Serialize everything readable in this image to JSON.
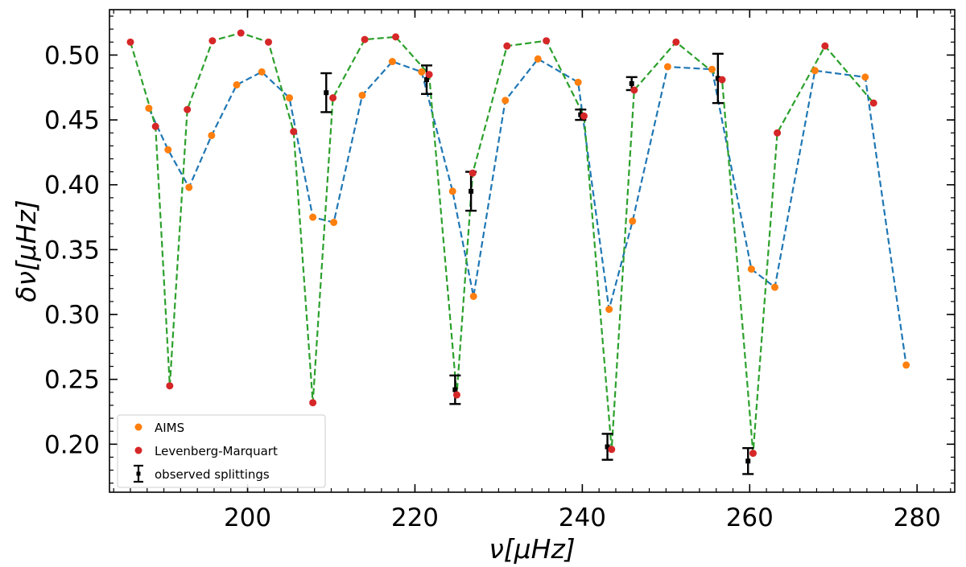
{
  "chart_data": {
    "type": "scatter",
    "title": "",
    "xlabel": "ν[μHz]",
    "ylabel": "δν[μHz]",
    "xlim": [
      183.5,
      284.5
    ],
    "ylim": [
      0.163,
      0.535
    ],
    "x_ticks": [
      200,
      220,
      240,
      260,
      280
    ],
    "x_tick_labels": [
      "200",
      "220",
      "240",
      "260",
      "280"
    ],
    "y_ticks": [
      0.2,
      0.25,
      0.3,
      0.35,
      0.4,
      0.45,
      0.5
    ],
    "y_tick_labels": [
      "0.20",
      "0.25",
      "0.30",
      "0.35",
      "0.40",
      "0.45",
      "0.50"
    ],
    "x_minor_step": 2,
    "y_minor_step": 0.01,
    "grid": false,
    "legend_position": "bottom-left",
    "colors": {
      "aims": "#ff7f0e",
      "lm": "#d62728",
      "aims_line": "#1f77b4",
      "lm_line": "#2ca02c",
      "observed": "#000000"
    },
    "series": [
      {
        "name": "AIMS",
        "kind": "points",
        "x": [
          188.2,
          190.5,
          193.0,
          195.7,
          198.7,
          201.7,
          205.0,
          207.8,
          210.3,
          213.7,
          217.3,
          220.8,
          224.5,
          227.0,
          230.8,
          234.7,
          239.5,
          243.2,
          246.0,
          250.2,
          255.5,
          260.2,
          263.0,
          267.8,
          273.8,
          278.7
        ],
        "y": [
          0.459,
          0.427,
          0.398,
          0.438,
          0.477,
          0.487,
          0.467,
          0.375,
          0.371,
          0.469,
          0.495,
          0.487,
          0.395,
          0.314,
          0.465,
          0.497,
          0.479,
          0.304,
          0.372,
          0.491,
          0.489,
          0.335,
          0.321,
          0.488,
          0.483,
          0.261
        ]
      },
      {
        "name": "Levenberg-Marquart",
        "kind": "points",
        "x": [
          186.0,
          189.0,
          190.7,
          192.8,
          195.8,
          199.2,
          202.5,
          205.5,
          207.8,
          210.2,
          214.0,
          217.7,
          221.7,
          225.0,
          226.9,
          231.0,
          235.7,
          240.2,
          243.5,
          246.2,
          251.2,
          256.7,
          260.4,
          263.3,
          269.0,
          274.8
        ],
        "y": [
          0.51,
          0.445,
          0.245,
          0.458,
          0.511,
          0.517,
          0.51,
          0.441,
          0.232,
          0.467,
          0.512,
          0.514,
          0.485,
          0.238,
          0.409,
          0.507,
          0.511,
          0.453,
          0.196,
          0.473,
          0.51,
          0.481,
          0.193,
          0.44,
          0.507,
          0.463
        ]
      },
      {
        "name": "observed splittings",
        "kind": "errorbar",
        "x": [
          209.4,
          221.4,
          224.8,
          226.7,
          239.8,
          243.0,
          245.9,
          256.2,
          259.8
        ],
        "y": [
          0.471,
          0.481,
          0.242,
          0.395,
          0.454,
          0.198,
          0.478,
          0.482,
          0.187
        ],
        "yerr": [
          0.015,
          0.011,
          0.011,
          0.015,
          0.004,
          0.01,
          0.005,
          0.019,
          0.01
        ]
      }
    ]
  }
}
